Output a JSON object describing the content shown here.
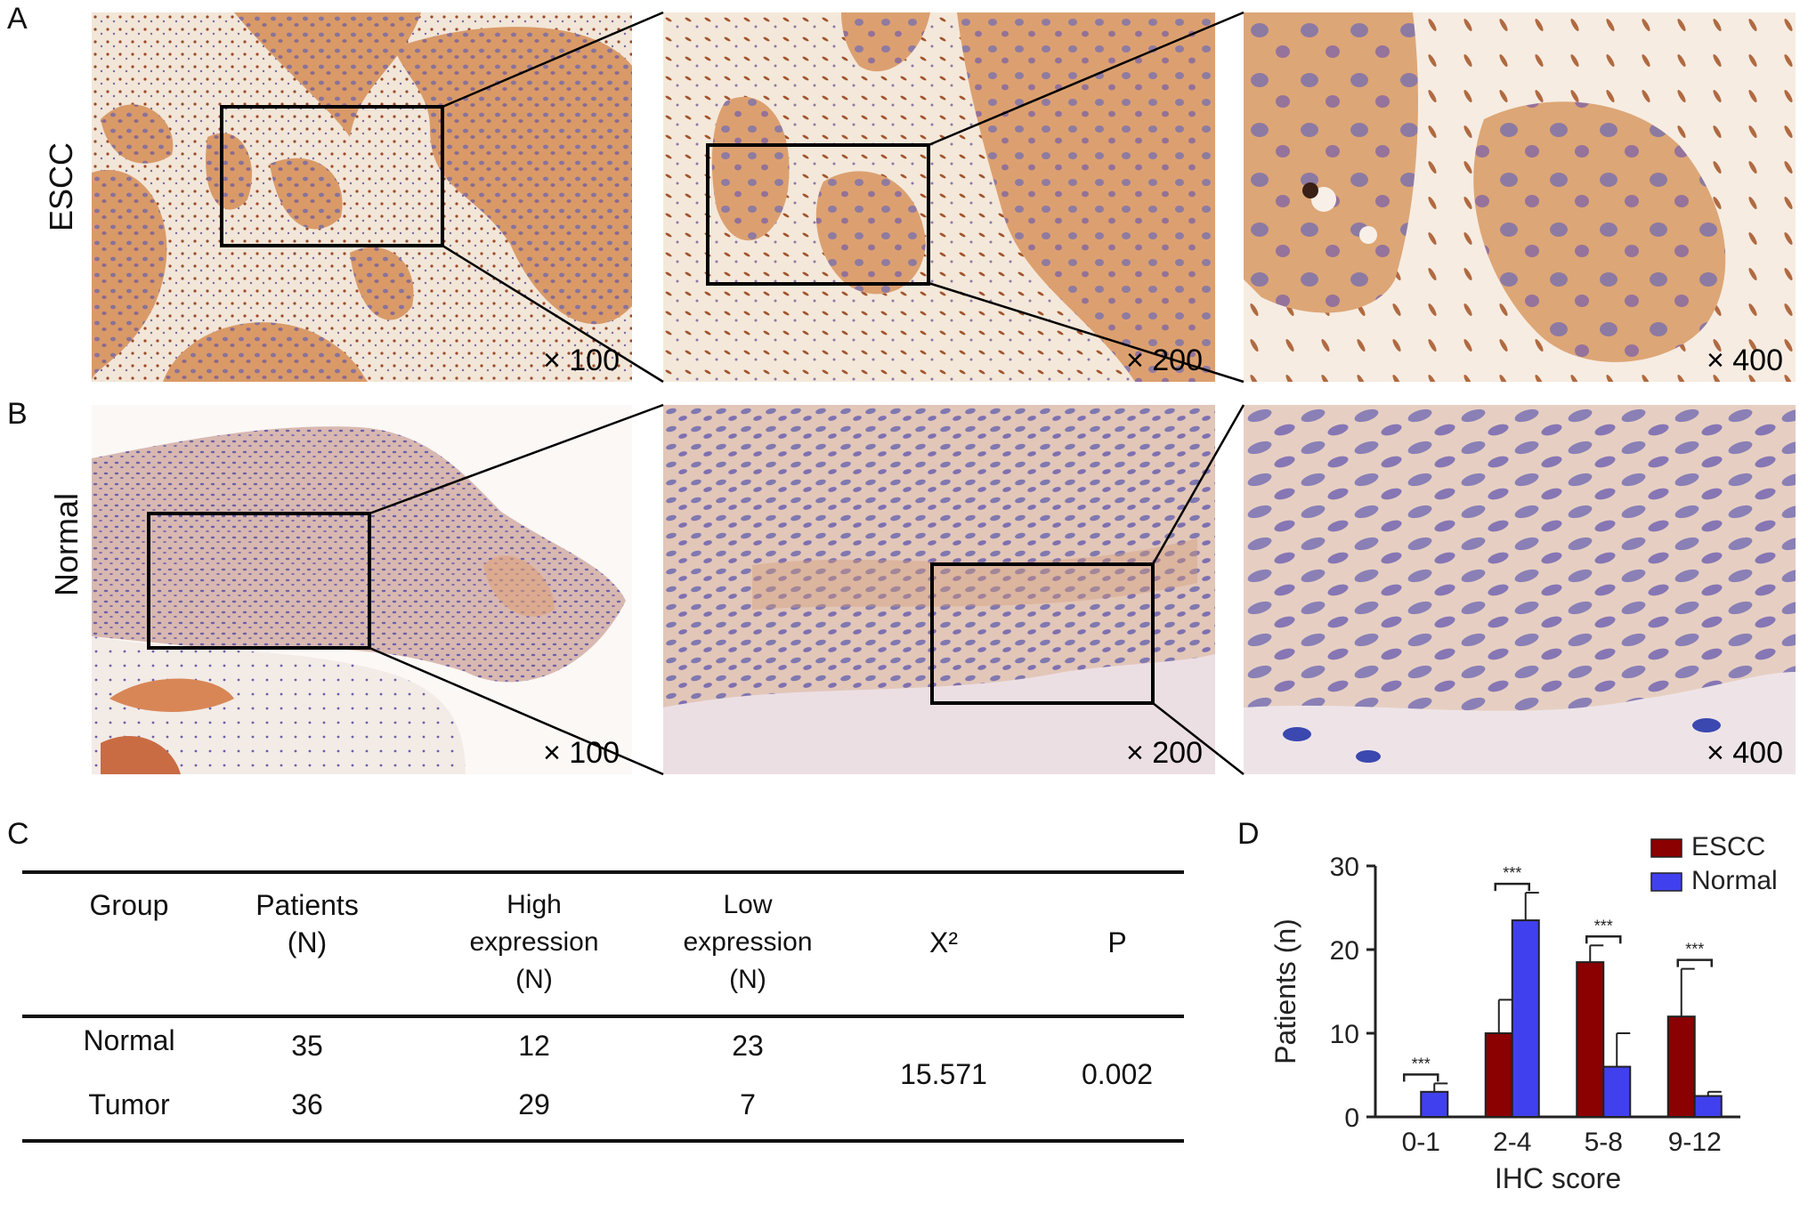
{
  "panels": {
    "A": "A",
    "B": "B",
    "C": "C",
    "D": "D"
  },
  "rows": {
    "escc_label": "ESCC",
    "normal_label": "Normal"
  },
  "magnifications": {
    "a1": "× 100",
    "a2": "× 200",
    "a3": "× 400",
    "b1": "× 100",
    "b2": "× 200",
    "b3": "× 400"
  },
  "table": {
    "headers": {
      "group": "Group",
      "patients_1": "Patients",
      "patients_2": "(N)",
      "high_1": "High",
      "high_2": "expression",
      "high_3": "(N)",
      "low_1": "Low",
      "low_2": "expression",
      "low_3": "(N)",
      "chi": "X²",
      "p": "P"
    },
    "rows": [
      {
        "group": "Normal",
        "patients": "35",
        "high": "12",
        "low": "23"
      },
      {
        "group": "Tumor",
        "patients": "36",
        "high": "29",
        "low": "7"
      }
    ],
    "chi_value": "15.571",
    "p_value": "0.002"
  },
  "chart_data": {
    "type": "bar",
    "title": "",
    "xlabel": "IHC score",
    "ylabel": "Patients (n)",
    "categories": [
      "0-1",
      "2-4",
      "5-8",
      "9-12"
    ],
    "ylim": [
      0,
      30
    ],
    "yticks": [
      "0",
      "10",
      "20",
      "30"
    ],
    "series": [
      {
        "name": "ESCC",
        "color": "#8b0000",
        "values": [
          0,
          10,
          18.5,
          12
        ],
        "errors": [
          0,
          4,
          2,
          5.7
        ]
      },
      {
        "name": "Normal",
        "color": "#4040ee",
        "values": [
          3,
          23.5,
          6,
          2.5
        ],
        "errors": [
          1,
          3.3,
          4,
          0.5
        ]
      }
    ],
    "significance": [
      "***",
      "***",
      "***",
      "***"
    ],
    "legend_position": "top-right"
  }
}
